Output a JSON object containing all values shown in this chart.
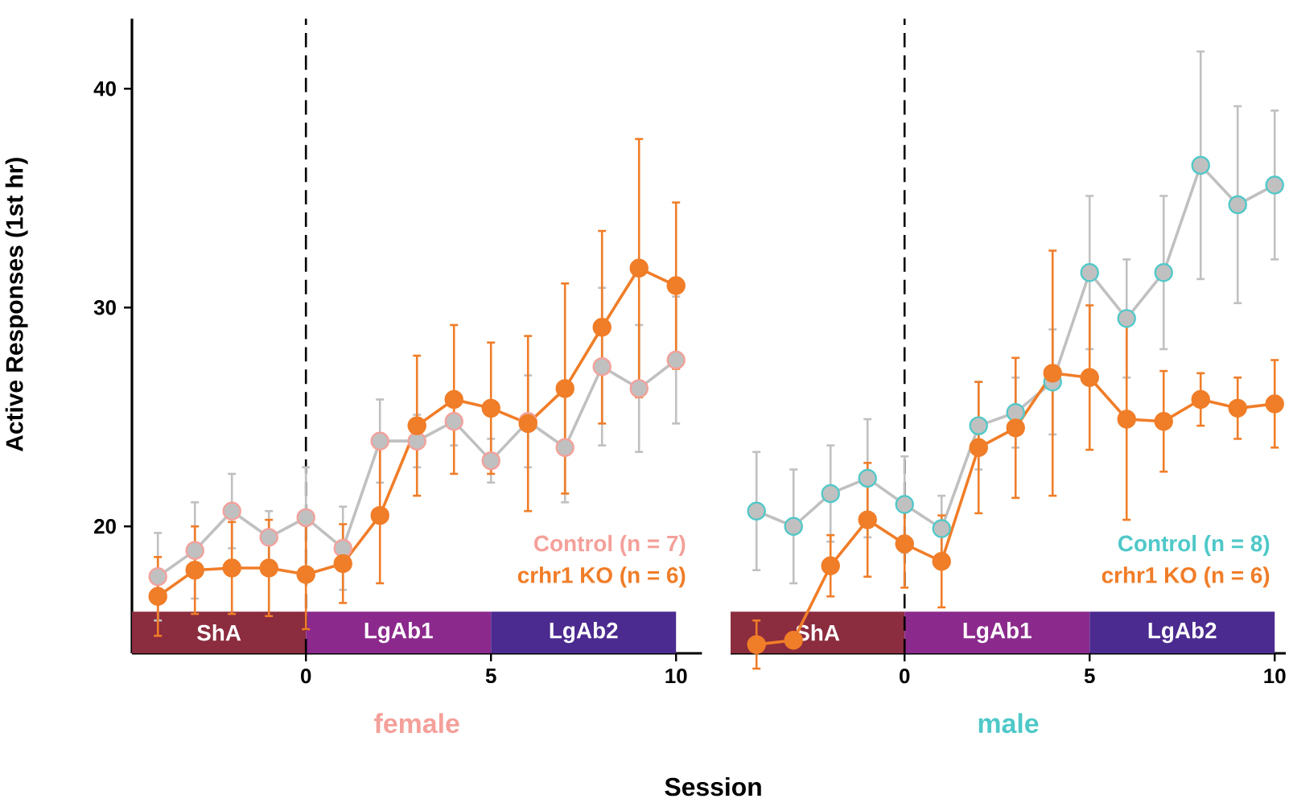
{
  "chart_data": [
    {
      "type": "line",
      "title": "female",
      "xlabel": "Session",
      "ylabel": "Active Responses (1st hr)",
      "x": [
        -4,
        -3,
        -2,
        -1,
        0,
        1,
        2,
        3,
        4,
        5,
        6,
        7,
        8,
        9,
        10
      ],
      "series": [
        {
          "name": "Control (n = 7)",
          "color": "#f4a09a",
          "values": [
            17.7,
            18.9,
            20.7,
            19.5,
            20.4,
            19.0,
            23.9,
            23.9,
            24.8,
            23.0,
            24.8,
            23.6,
            27.3,
            26.3,
            27.6
          ],
          "errors": [
            2.0,
            2.2,
            1.7,
            1.2,
            2.3,
            1.9,
            1.9,
            1.2,
            1.1,
            1.0,
            2.1,
            2.5,
            3.6,
            2.9,
            2.9
          ]
        },
        {
          "name": "crhr1 KO (n = 6)",
          "color": "#f07d28",
          "values": [
            16.8,
            18.0,
            18.1,
            18.1,
            17.8,
            18.3,
            20.5,
            24.6,
            25.8,
            25.4,
            24.7,
            26.3,
            29.1,
            31.8,
            31.0
          ],
          "errors": [
            1.8,
            2.0,
            2.1,
            2.2,
            2.5,
            1.8,
            3.1,
            3.2,
            3.4,
            3.0,
            4.0,
            4.8,
            4.4,
            5.9,
            3.8
          ]
        }
      ],
      "xlim": [
        -4.7,
        10.7
      ],
      "ylim": [
        14.2,
        43.2
      ],
      "xticks": [
        0,
        5,
        10
      ],
      "yticks": [
        20,
        30,
        40
      ],
      "ref_lines": [
        {
          "axis": "x",
          "value": 0,
          "color": "#000000",
          "line_style": "dashed"
        }
      ],
      "bands": [
        {
          "axis": "x",
          "from": -4.7,
          "to": 0,
          "label": "ShA",
          "color": "#8b2c3f"
        },
        {
          "axis": "x",
          "from": 0,
          "to": 5,
          "label": "LgAb1",
          "color": "#8b2a8c"
        },
        {
          "axis": "x",
          "from": 5,
          "to": 10,
          "label": "LgAb2",
          "color": "#4b2b8f"
        }
      ],
      "legend": "bottom right",
      "marker": "circle",
      "line_style": "solid",
      "grid": false
    },
    {
      "type": "line",
      "title": "male",
      "x": [
        -4,
        -3,
        -2,
        -1,
        0,
        1,
        2,
        3,
        4,
        5,
        6,
        7,
        8,
        9,
        10
      ],
      "series": [
        {
          "name": "Control (n = 8)",
          "color": "#4fc8c8",
          "values": [
            20.7,
            20.0,
            21.5,
            22.2,
            21.0,
            19.9,
            24.6,
            25.2,
            26.6,
            31.6,
            29.5,
            31.6,
            36.5,
            34.7,
            35.6
          ],
          "errors": [
            2.7,
            2.6,
            2.2,
            2.7,
            2.2,
            1.5,
            2.0,
            1.6,
            2.4,
            3.5,
            2.7,
            3.5,
            5.2,
            4.5,
            3.4
          ]
        },
        {
          "name": "crhr1 KO (n = 6)",
          "color": "#f07d28",
          "values": [
            14.6,
            14.8,
            18.2,
            20.3,
            19.2,
            18.4,
            23.6,
            24.5,
            27.0,
            26.8,
            24.9,
            24.8,
            25.8,
            25.4,
            25.6
          ],
          "errors": [
            1.1,
            null,
            1.4,
            2.6,
            2.0,
            2.1,
            3.0,
            3.2,
            5.6,
            3.3,
            4.6,
            2.3,
            1.2,
            1.4,
            2.0
          ]
        }
      ],
      "xlim": [
        -4.7,
        10.3
      ],
      "ylim": [
        14.2,
        43.2
      ],
      "xticks": [
        0,
        5,
        10
      ],
      "yticks": [
        20,
        30,
        40
      ],
      "tick_labels": "x",
      "ref_lines": [
        {
          "axis": "x",
          "value": 0,
          "color": "#000000",
          "line_style": "dashed"
        }
      ],
      "bands": [
        {
          "axis": "x",
          "from": -4.7,
          "to": 0,
          "label": "ShA",
          "color": "#8b2c3f"
        },
        {
          "axis": "x",
          "from": 0,
          "to": 5,
          "label": "LgAb1",
          "color": "#8b2a8c"
        },
        {
          "axis": "x",
          "from": 5,
          "to": 10,
          "label": "LgAb2",
          "color": "#4b2b8f"
        }
      ],
      "legend": "bottom right",
      "marker": "circle",
      "line_style": "solid",
      "grid": false
    }
  ]
}
